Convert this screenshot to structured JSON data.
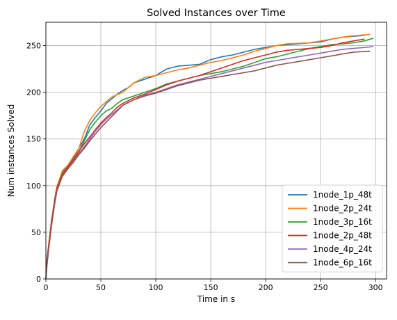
{
  "chart_data": {
    "type": "line",
    "title": "Solved Instances over Time",
    "xlabel": "Time in s",
    "ylabel": "Num instances Solved",
    "xlim": [
      0,
      310
    ],
    "ylim": [
      0,
      275
    ],
    "xticks": [
      0,
      50,
      100,
      150,
      200,
      250,
      300
    ],
    "yticks": [
      0,
      50,
      100,
      150,
      200,
      250
    ],
    "grid": true,
    "legend_position": "bottom-right",
    "series": [
      {
        "name": "1node_1p_48t",
        "color": "#1f77b4",
        "points": [
          [
            0,
            0
          ],
          [
            1,
            18
          ],
          [
            3,
            40
          ],
          [
            5,
            60
          ],
          [
            8,
            85
          ],
          [
            10,
            98
          ],
          [
            15,
            115
          ],
          [
            20,
            122
          ],
          [
            25,
            130
          ],
          [
            30,
            140
          ],
          [
            35,
            150
          ],
          [
            40,
            165
          ],
          [
            45,
            173
          ],
          [
            50,
            180
          ],
          [
            55,
            188
          ],
          [
            60,
            193
          ],
          [
            65,
            198
          ],
          [
            70,
            202
          ],
          [
            75,
            205
          ],
          [
            80,
            210
          ],
          [
            90,
            214
          ],
          [
            100,
            218
          ],
          [
            110,
            225
          ],
          [
            120,
            228
          ],
          [
            140,
            230
          ],
          [
            150,
            235
          ],
          [
            160,
            238
          ],
          [
            170,
            240
          ],
          [
            180,
            243
          ],
          [
            190,
            246
          ],
          [
            200,
            248
          ],
          [
            210,
            250
          ],
          [
            230,
            252
          ],
          [
            250,
            254
          ],
          [
            260,
            257
          ],
          [
            270,
            259
          ],
          [
            280,
            260
          ],
          [
            290,
            261
          ]
        ]
      },
      {
        "name": "1node_2p_24t",
        "color": "#ff7f0e",
        "points": [
          [
            0,
            0
          ],
          [
            1,
            20
          ],
          [
            3,
            42
          ],
          [
            5,
            62
          ],
          [
            8,
            86
          ],
          [
            10,
            99
          ],
          [
            15,
            116
          ],
          [
            20,
            122
          ],
          [
            25,
            131
          ],
          [
            30,
            140
          ],
          [
            35,
            158
          ],
          [
            40,
            170
          ],
          [
            45,
            178
          ],
          [
            50,
            185
          ],
          [
            55,
            190
          ],
          [
            60,
            195
          ],
          [
            70,
            200
          ],
          [
            80,
            210
          ],
          [
            90,
            216
          ],
          [
            100,
            218
          ],
          [
            110,
            221
          ],
          [
            120,
            224
          ],
          [
            130,
            226
          ],
          [
            140,
            229
          ],
          [
            150,
            232
          ],
          [
            160,
            234
          ],
          [
            170,
            237
          ],
          [
            180,
            240
          ],
          [
            190,
            244
          ],
          [
            200,
            247
          ],
          [
            210,
            250
          ],
          [
            220,
            252
          ],
          [
            240,
            253
          ],
          [
            255,
            256
          ],
          [
            265,
            258
          ],
          [
            275,
            260
          ],
          [
            285,
            261
          ],
          [
            295,
            262
          ]
        ]
      },
      {
        "name": "1node_3p_16t",
        "color": "#2ca02c",
        "points": [
          [
            0,
            0
          ],
          [
            1,
            17
          ],
          [
            3,
            38
          ],
          [
            5,
            58
          ],
          [
            8,
            84
          ],
          [
            10,
            97
          ],
          [
            15,
            113
          ],
          [
            20,
            120
          ],
          [
            25,
            128
          ],
          [
            30,
            136
          ],
          [
            35,
            148
          ],
          [
            40,
            160
          ],
          [
            45,
            168
          ],
          [
            50,
            175
          ],
          [
            55,
            180
          ],
          [
            60,
            183
          ],
          [
            65,
            188
          ],
          [
            70,
            192
          ],
          [
            80,
            196
          ],
          [
            90,
            200
          ],
          [
            100,
            204
          ],
          [
            110,
            209
          ],
          [
            120,
            212
          ],
          [
            130,
            215
          ],
          [
            140,
            218
          ],
          [
            150,
            220
          ],
          [
            160,
            222
          ],
          [
            170,
            225
          ],
          [
            180,
            228
          ],
          [
            190,
            232
          ],
          [
            200,
            236
          ],
          [
            210,
            238
          ],
          [
            220,
            241
          ],
          [
            230,
            244
          ],
          [
            240,
            247
          ],
          [
            250,
            249
          ],
          [
            260,
            251
          ],
          [
            270,
            252
          ],
          [
            280,
            253
          ],
          [
            290,
            255
          ],
          [
            298,
            258
          ]
        ]
      },
      {
        "name": "1node_2p_48t",
        "color": "#d62728",
        "points": [
          [
            0,
            0
          ],
          [
            1,
            22
          ],
          [
            3,
            40
          ],
          [
            5,
            60
          ],
          [
            8,
            84
          ],
          [
            10,
            97
          ],
          [
            15,
            112
          ],
          [
            20,
            120
          ],
          [
            25,
            128
          ],
          [
            30,
            137
          ],
          [
            35,
            145
          ],
          [
            40,
            152
          ],
          [
            45,
            160
          ],
          [
            50,
            167
          ],
          [
            55,
            173
          ],
          [
            60,
            178
          ],
          [
            65,
            184
          ],
          [
            70,
            188
          ],
          [
            80,
            194
          ],
          [
            90,
            198
          ],
          [
            100,
            203
          ],
          [
            110,
            208
          ],
          [
            120,
            212
          ],
          [
            130,
            215
          ],
          [
            140,
            218
          ],
          [
            150,
            222
          ],
          [
            160,
            226
          ],
          [
            170,
            230
          ],
          [
            180,
            234
          ],
          [
            190,
            237
          ],
          [
            200,
            240
          ],
          [
            210,
            243
          ],
          [
            220,
            245
          ],
          [
            240,
            247
          ],
          [
            250,
            248
          ],
          [
            260,
            250
          ],
          [
            270,
            253
          ],
          [
            280,
            255
          ],
          [
            290,
            257
          ]
        ]
      },
      {
        "name": "1node_4p_24t",
        "color": "#9467bd",
        "points": [
          [
            0,
            0
          ],
          [
            1,
            16
          ],
          [
            3,
            37
          ],
          [
            5,
            57
          ],
          [
            8,
            82
          ],
          [
            10,
            95
          ],
          [
            15,
            110
          ],
          [
            20,
            118
          ],
          [
            25,
            126
          ],
          [
            30,
            134
          ],
          [
            35,
            142
          ],
          [
            40,
            150
          ],
          [
            45,
            158
          ],
          [
            50,
            165
          ],
          [
            55,
            171
          ],
          [
            60,
            176
          ],
          [
            65,
            181
          ],
          [
            70,
            186
          ],
          [
            80,
            192
          ],
          [
            90,
            197
          ],
          [
            100,
            200
          ],
          [
            110,
            204
          ],
          [
            120,
            208
          ],
          [
            130,
            211
          ],
          [
            140,
            214
          ],
          [
            150,
            217
          ],
          [
            160,
            220
          ],
          [
            170,
            223
          ],
          [
            180,
            226
          ],
          [
            190,
            229
          ],
          [
            200,
            232
          ],
          [
            210,
            234
          ],
          [
            220,
            236
          ],
          [
            230,
            238
          ],
          [
            240,
            240
          ],
          [
            250,
            242
          ],
          [
            260,
            244
          ],
          [
            270,
            246
          ],
          [
            280,
            247
          ],
          [
            290,
            248
          ],
          [
            298,
            249
          ]
        ]
      },
      {
        "name": "1node_6p_16t",
        "color": "#8c564b",
        "points": [
          [
            0,
            0
          ],
          [
            1,
            15
          ],
          [
            3,
            36
          ],
          [
            5,
            56
          ],
          [
            8,
            80
          ],
          [
            10,
            94
          ],
          [
            15,
            110
          ],
          [
            20,
            118
          ],
          [
            25,
            125
          ],
          [
            30,
            133
          ],
          [
            35,
            140
          ],
          [
            40,
            148
          ],
          [
            45,
            155
          ],
          [
            50,
            162
          ],
          [
            55,
            168
          ],
          [
            60,
            174
          ],
          [
            65,
            180
          ],
          [
            70,
            186
          ],
          [
            80,
            192
          ],
          [
            90,
            196
          ],
          [
            100,
            199
          ],
          [
            110,
            203
          ],
          [
            120,
            207
          ],
          [
            130,
            210
          ],
          [
            140,
            213
          ],
          [
            150,
            215
          ],
          [
            160,
            217
          ],
          [
            170,
            219
          ],
          [
            180,
            221
          ],
          [
            190,
            223
          ],
          [
            200,
            226
          ],
          [
            210,
            229
          ],
          [
            220,
            231
          ],
          [
            230,
            233
          ],
          [
            240,
            235
          ],
          [
            250,
            237
          ],
          [
            260,
            239
          ],
          [
            270,
            241
          ],
          [
            280,
            243
          ],
          [
            295,
            244
          ]
        ]
      }
    ]
  }
}
